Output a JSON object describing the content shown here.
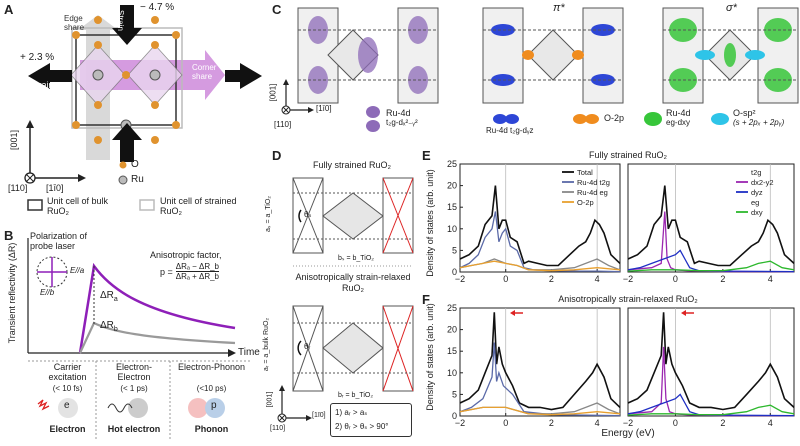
{
  "panels": {
    "A": {
      "label": "A",
      "strain_top": "− 4.7 %",
      "strain_left": "+ 2.3 %",
      "strain_word": "Strain",
      "edge_share": "Edge share",
      "corner_share": "Corner share",
      "axis_001": "[001]",
      "axis_1m10": "[1ī0]",
      "axis_110": "[110]",
      "legend_O": "O",
      "legend_Ru": "Ru",
      "unit_bulk": "Unit cell of bulk RuO₂",
      "unit_strained": "Unit cell of strained RuO₂"
    },
    "B": {
      "label": "B",
      "ylabel": "Transient reflectivity (ΔR)",
      "xlabel": "Time",
      "probe": "Polarization of probe laser",
      "e_a": "E//a",
      "e_b": "E//b",
      "dRa": "ΔR",
      "dRa_sub": "a",
      "dRb": "ΔR",
      "dRb_sub": "b",
      "aniso_title": "Anisotropic factor,",
      "aniso_p": "p =",
      "aniso_num": "ΔRₐ − ΔR_b",
      "aniso_den": "ΔRₐ + ΔR_b",
      "stages": [
        {
          "title": "Carrier excitation",
          "time": "(< 10 fs)",
          "particle": "Electron",
          "glyph": "e"
        },
        {
          "title": "Electron-Electron",
          "time": "(< 1 ps)",
          "particle": "Hot electron",
          "glyph": ""
        },
        {
          "title": "Electron-Phonon",
          "time": "(<10 ps)",
          "particle": "Phonon",
          "glyph": "p"
        }
      ]
    },
    "C": {
      "label": "C",
      "pi_star": "π*",
      "sigma_star": "σ*",
      "axis_001": "[001]",
      "axis_1m10": "[1ī0]",
      "axis_110": "[110]",
      "legend": [
        {
          "name": "Ru-4d",
          "sub": "t₂g-dₓ²₋ᵧ²"
        },
        {
          "name": "Ru-4d",
          "sub": "t₂g-dᵧz"
        },
        {
          "name": "O-2p",
          "sub": ""
        },
        {
          "name": "Ru-4d",
          "sub": "eg-dxy"
        },
        {
          "name": "O-sp²",
          "sub": "(s + 2pₓ + 2pᵧ)"
        }
      ]
    },
    "D": {
      "label": "D",
      "title_top": "Fully strained RuO₂",
      "title_bottom": "Anisotropically strain-relaxed RuO₂",
      "a_s": "aₛ = a_TiO₂",
      "b_s": "bₛ = b_TiO₂",
      "a_r": "aᵣ = a_bulk RuO₂",
      "b_r": "bᵣ = b_TiO₂",
      "theta_s": "θₛ",
      "theta_r": "θᵣ",
      "axis_001": "[001]",
      "axis_1m10": "[1ī0]",
      "axis_110": "[110]",
      "cond1": "1) aᵣ > aₛ",
      "cond2": "2) θᵣ > θₛ > 90°"
    },
    "E": {
      "label": "E",
      "title": "Fully strained RuO₂",
      "ylabel": "Density of states (arb. unit)"
    },
    "F": {
      "label": "F",
      "title": "Anisotropically strain-relaxed RuO₂",
      "ylabel": "Density of states (arb. unit)",
      "xlabel": "Energy (eV)"
    }
  },
  "chart_data": [
    {
      "type": "line",
      "title": "Fully strained RuO₂",
      "panel": "E-left",
      "xlabel": "",
      "ylabel": "Density of states (arb. unit)",
      "xlim": [
        -2,
        5
      ],
      "ylim": [
        0,
        25
      ],
      "xticks": [
        -2,
        0,
        2,
        4
      ],
      "yticks": [
        0,
        5,
        10,
        15,
        20,
        25
      ],
      "legend": [
        "Total",
        "Ru-4d t2g",
        "Ru-4d eg",
        "O-2p"
      ],
      "series": [
        {
          "name": "Total",
          "color": "#111111",
          "x": [
            -2,
            -1.6,
            -1.2,
            -0.9,
            -0.6,
            -0.45,
            -0.3,
            -0.15,
            0,
            0.2,
            0.5,
            0.8,
            1.0,
            1.4,
            1.8,
            2.3,
            2.8,
            3.2,
            3.5,
            3.7,
            3.9,
            4.1,
            4.3,
            4.6,
            5
          ],
          "y": [
            3,
            4,
            6,
            11,
            13,
            20,
            10,
            12,
            12,
            8,
            7,
            2,
            2.5,
            2,
            1.5,
            1.5,
            4,
            6,
            7,
            9,
            12,
            11,
            9,
            4,
            2
          ]
        },
        {
          "name": "Ru-4d t2g",
          "color": "#5b6aa8",
          "x": [
            -2,
            -1.6,
            -1.2,
            -0.9,
            -0.6,
            -0.45,
            -0.3,
            -0.15,
            0,
            0.2,
            0.5,
            0.8,
            1.2,
            2,
            3,
            4,
            5
          ],
          "y": [
            1,
            2,
            4,
            8,
            10,
            14,
            7,
            9,
            10,
            6,
            5,
            1,
            0.5,
            0.3,
            0.2,
            0.2,
            0.1
          ]
        },
        {
          "name": "Ru-4d eg",
          "color": "#888888",
          "x": [
            -2,
            -1.5,
            -1,
            -0.5,
            0,
            0.5,
            1,
            2,
            3,
            3.5,
            4,
            4.5,
            5
          ],
          "y": [
            1,
            1.5,
            2,
            3,
            2,
            1.5,
            0.5,
            0.5,
            1,
            2,
            3,
            1.5,
            0.5
          ]
        },
        {
          "name": "O-2p",
          "color": "#e8a030",
          "x": [
            -2,
            -1.5,
            -1,
            -0.5,
            0,
            0.5,
            1,
            2,
            3,
            4,
            5
          ],
          "y": [
            1,
            1.5,
            2,
            2.5,
            2,
            1.5,
            0.5,
            0.3,
            0.5,
            1,
            0.5
          ]
        }
      ]
    },
    {
      "type": "line",
      "panel": "E-right",
      "xlim": [
        -2,
        5
      ],
      "ylim": [
        0,
        25
      ],
      "xticks": [
        -2,
        0,
        2,
        4
      ],
      "legend": [
        "t2g",
        "dx2-y2",
        "dyz",
        "eg",
        "dxy"
      ],
      "series": [
        {
          "name": "Total",
          "color": "#111111",
          "x": [
            -2,
            -1.6,
            -1.2,
            -0.9,
            -0.6,
            -0.45,
            -0.3,
            -0.15,
            0,
            0.2,
            0.5,
            0.8,
            1.0,
            1.4,
            1.8,
            2.3,
            2.8,
            3.2,
            3.5,
            3.7,
            3.9,
            4.1,
            4.3,
            4.6,
            5
          ],
          "y": [
            3,
            4,
            6,
            11,
            13,
            20,
            10,
            12,
            12,
            8,
            7,
            2,
            2.5,
            2,
            1.5,
            1.5,
            4,
            6,
            7,
            9,
            12,
            11,
            9,
            4,
            2
          ]
        },
        {
          "name": "dx2-y2",
          "color": "#9b27b0",
          "x": [
            -2,
            -1,
            -0.6,
            -0.45,
            -0.35,
            -0.2,
            0,
            0.5,
            1,
            2,
            5
          ],
          "y": [
            0.5,
            1,
            2,
            14,
            3,
            1,
            0.5,
            0.3,
            0.2,
            0.1,
            0.1
          ]
        },
        {
          "name": "dyz",
          "color": "#1f2fc4",
          "x": [
            -2,
            -1.5,
            -1,
            -0.5,
            0,
            0.2,
            0.4,
            0.6,
            1,
            2,
            5
          ],
          "y": [
            0.5,
            1,
            2,
            3,
            4,
            5,
            3,
            1,
            0.3,
            0.2,
            0.1
          ]
        },
        {
          "name": "dxy",
          "color": "#2db82d",
          "x": [
            -2,
            -1,
            0,
            1,
            2,
            3,
            3.5,
            4,
            4.5,
            5
          ],
          "y": [
            0.2,
            0.5,
            0.5,
            0.3,
            0.3,
            1,
            2,
            2.5,
            1,
            0.5
          ]
        }
      ]
    },
    {
      "type": "line",
      "title": "Anisotropically strain-relaxed RuO₂",
      "panel": "F-left",
      "xlabel": "Energy (eV)",
      "ylabel": "Density of states (arb. unit)",
      "xlim": [
        -2,
        5
      ],
      "ylim": [
        0,
        25
      ],
      "xticks": [
        -2,
        0,
        2,
        4
      ],
      "yticks": [
        0,
        5,
        10,
        15,
        20,
        25
      ],
      "series": [
        {
          "name": "Total",
          "color": "#111111",
          "x": [
            -2,
            -1.6,
            -1.2,
            -0.9,
            -0.6,
            -0.5,
            -0.4,
            -0.3,
            -0.15,
            0,
            0.3,
            0.6,
            1,
            1.5,
            2,
            2.5,
            3,
            3.5,
            3.8,
            4,
            4.3,
            4.6,
            5
          ],
          "y": [
            3,
            4,
            6,
            10,
            14,
            24,
            12,
            16,
            12,
            10,
            7,
            3,
            2,
            2,
            1.5,
            2,
            5,
            8,
            10,
            12,
            9,
            4,
            2
          ]
        },
        {
          "name": "Ru-4d t2g",
          "color": "#5b6aa8",
          "x": [
            -2,
            -1.5,
            -1,
            -0.6,
            -0.5,
            -0.4,
            -0.3,
            -0.1,
            0.3,
            0.8,
            2,
            5
          ],
          "y": [
            1,
            2,
            4,
            9,
            17,
            8,
            10,
            7,
            5,
            1,
            0.3,
            0.1
          ]
        },
        {
          "name": "Ru-4d eg",
          "color": "#888888",
          "x": [
            -2,
            -1,
            0,
            1,
            2,
            3,
            3.5,
            4,
            4.5,
            5
          ],
          "y": [
            1,
            2,
            2,
            0.5,
            0.5,
            1,
            2,
            3,
            1.5,
            0.5
          ]
        },
        {
          "name": "O-2p",
          "color": "#e8a030",
          "x": [
            -2,
            -1,
            0,
            1,
            2,
            3,
            4,
            5
          ],
          "y": [
            1,
            2,
            2,
            0.5,
            0.3,
            0.5,
            1,
            0.5
          ]
        }
      ]
    },
    {
      "type": "line",
      "panel": "F-right",
      "xlim": [
        -2,
        5
      ],
      "ylim": [
        0,
        25
      ],
      "xticks": [
        -2,
        0,
        2,
        4
      ],
      "series": [
        {
          "name": "Total",
          "color": "#111111",
          "x": [
            -2,
            -1.6,
            -1.2,
            -0.9,
            -0.6,
            -0.5,
            -0.4,
            -0.3,
            -0.15,
            0,
            0.3,
            0.6,
            1,
            1.5,
            2,
            2.5,
            3,
            3.5,
            3.8,
            4,
            4.3,
            4.6,
            5
          ],
          "y": [
            3,
            4,
            6,
            10,
            14,
            24,
            12,
            16,
            12,
            10,
            7,
            3,
            2,
            2,
            1.5,
            2,
            5,
            8,
            10,
            12,
            9,
            4,
            2
          ]
        },
        {
          "name": "dx2-y2",
          "color": "#9b27b0",
          "x": [
            -2,
            -1,
            -0.6,
            -0.5,
            -0.4,
            -0.25,
            0,
            0.5,
            1,
            2,
            5
          ],
          "y": [
            0.5,
            1,
            3,
            16,
            4,
            1,
            0.5,
            0.3,
            0.2,
            0.1,
            0.1
          ]
        },
        {
          "name": "dyz",
          "color": "#1f2fc4",
          "x": [
            -2,
            -1.5,
            -1,
            -0.5,
            0,
            0.2,
            0.4,
            0.6,
            1,
            2,
            5
          ],
          "y": [
            0.5,
            1,
            2,
            3,
            4,
            5,
            3,
            1,
            0.3,
            0.2,
            0.1
          ]
        },
        {
          "name": "dxy",
          "color": "#2db82d",
          "x": [
            -2,
            -1,
            0,
            1,
            2,
            3,
            3.5,
            4,
            4.5,
            5
          ],
          "y": [
            0.2,
            0.5,
            0.5,
            0.3,
            0.3,
            1,
            2,
            2.5,
            1,
            0.5
          ]
        }
      ]
    }
  ]
}
